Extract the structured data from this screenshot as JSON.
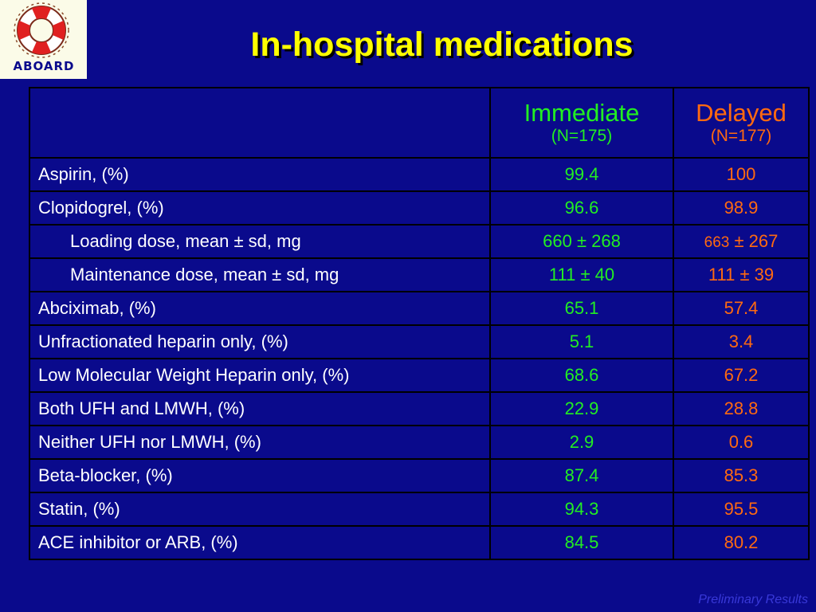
{
  "logo": {
    "text": "ABOARD"
  },
  "title": "In-hospital medications",
  "table": {
    "header": {
      "immediate": {
        "label": "Immediate",
        "n": "(N=175)"
      },
      "delayed": {
        "label": "Delayed",
        "n": "(N=177)"
      }
    },
    "rows": [
      {
        "label": "Aspirin,  (%)",
        "immediate": "99.4",
        "delayed": "100"
      },
      {
        "label": "Clopidogrel,  (%)",
        "immediate": "96.6",
        "delayed": "98.9"
      },
      {
        "label": "Loading dose, mean ± sd, mg",
        "immediate": "660 ± 268",
        "delayed_a": "663",
        "delayed_b": " ± 267"
      },
      {
        "label": "Maintenance dose, mean ± sd, mg",
        "immediate": "111 ± 40",
        "delayed": "111 ± 39"
      },
      {
        "label": "Abciximab,  (%)",
        "immediate": "65.1",
        "delayed": "57.4"
      },
      {
        "label": "Unfractionated heparin only,  (%)",
        "immediate": "5.1",
        "delayed": "3.4"
      },
      {
        "label": "Low Molecular Weight Heparin only, (%)",
        "immediate": "68.6",
        "delayed": "67.2"
      },
      {
        "label": "Both UFH and LMWH, (%)",
        "immediate": "22.9",
        "delayed": "28.8"
      },
      {
        "label": "Neither UFH nor LMWH, (%)",
        "immediate": "2.9",
        "delayed": "0.6"
      },
      {
        "label": "Beta-blocker, (%)",
        "immediate": "87.4",
        "delayed": "85.3"
      },
      {
        "label": "Statin, (%)",
        "immediate": "94.3",
        "delayed": "95.5"
      },
      {
        "label": "ACE inhibitor or ARB, (%)",
        "immediate": "84.5",
        "delayed": "80.2"
      }
    ]
  },
  "footer": "Preliminary Results",
  "colors": {
    "background": "#0a0a8c",
    "title": "#ffff00",
    "immediate": "#22ee22",
    "delayed": "#ff6a10",
    "footer": "#3838d8"
  }
}
